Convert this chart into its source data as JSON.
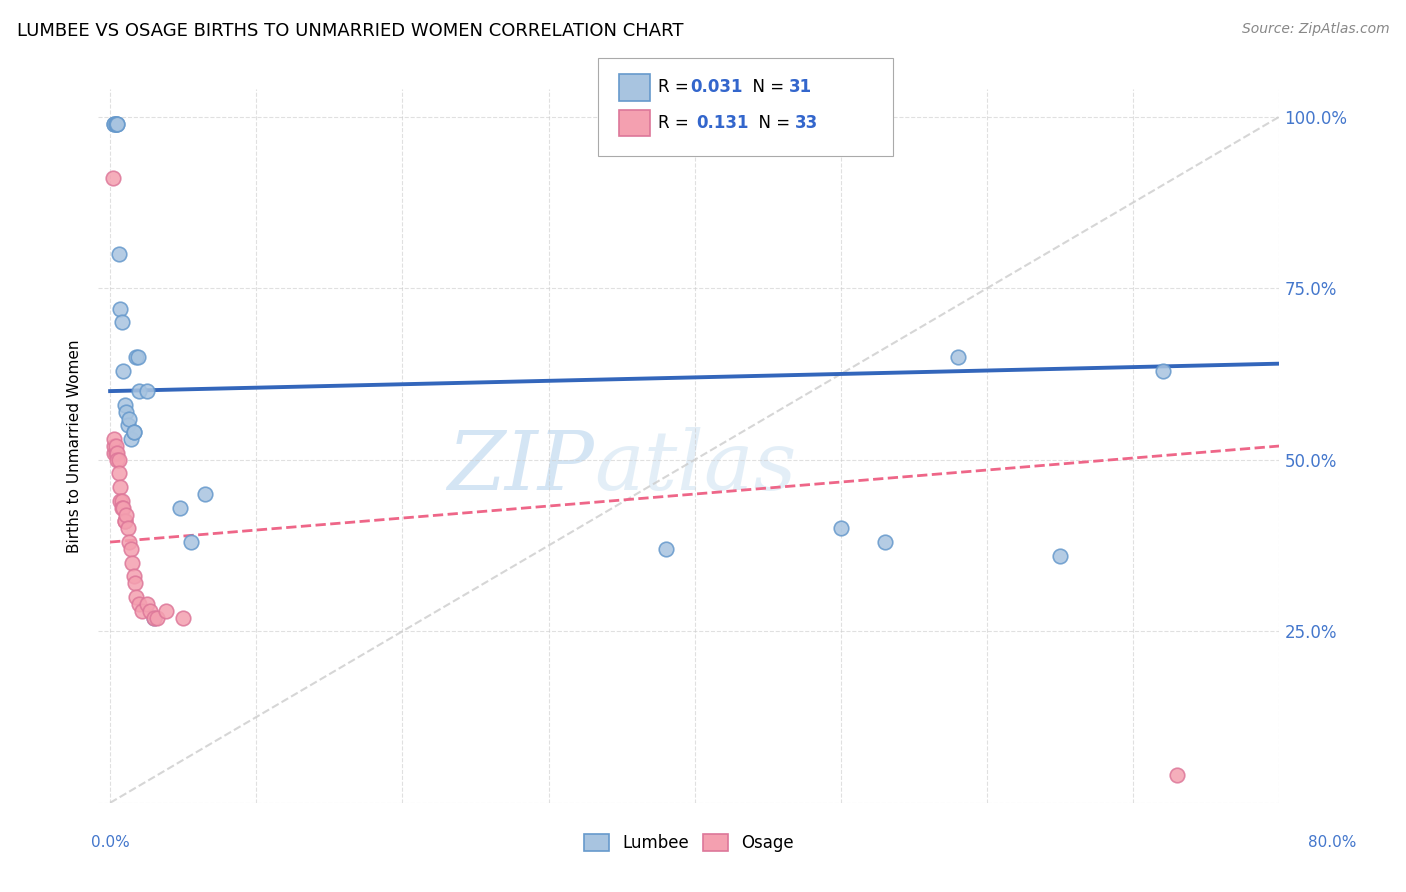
{
  "title": "LUMBEE VS OSAGE BIRTHS TO UNMARRIED WOMEN CORRELATION CHART",
  "source": "Source: ZipAtlas.com",
  "ylabel": "Births to Unmarried Women",
  "watermark": "ZIPatlas",
  "lumbee_color": "#a8c4e0",
  "osage_color": "#f4a0b0",
  "lumbee_edge": "#6699cc",
  "osage_edge": "#dd7799",
  "trend_lumbee_color": "#3366bb",
  "trend_osage_color": "#ee6688",
  "ref_line_color": "#cccccc",
  "xlim": [
    0.0,
    0.8
  ],
  "ylim": [
    0.0,
    1.04
  ],
  "marker_size": 110,
  "lumbee_x": [
    0.003,
    0.003,
    0.004,
    0.004,
    0.005,
    0.005,
    0.006,
    0.007,
    0.008,
    0.009,
    0.01,
    0.011,
    0.012,
    0.013,
    0.014,
    0.016,
    0.016,
    0.018,
    0.019,
    0.02,
    0.025,
    0.03,
    0.048,
    0.055,
    0.065,
    0.38,
    0.5,
    0.53,
    0.58,
    0.65,
    0.72
  ],
  "lumbee_y": [
    0.99,
    0.99,
    0.99,
    0.99,
    0.99,
    0.99,
    0.8,
    0.72,
    0.7,
    0.63,
    0.58,
    0.57,
    0.55,
    0.56,
    0.53,
    0.54,
    0.54,
    0.65,
    0.65,
    0.6,
    0.6,
    0.27,
    0.43,
    0.38,
    0.45,
    0.37,
    0.4,
    0.38,
    0.65,
    0.36,
    0.63
  ],
  "osage_x": [
    0.002,
    0.003,
    0.003,
    0.003,
    0.004,
    0.004,
    0.005,
    0.005,
    0.006,
    0.006,
    0.007,
    0.007,
    0.008,
    0.008,
    0.009,
    0.01,
    0.01,
    0.011,
    0.012,
    0.013,
    0.014,
    0.015,
    0.016,
    0.017,
    0.018,
    0.02,
    0.022,
    0.025,
    0.027,
    0.03,
    0.032,
    0.038,
    0.05,
    0.73
  ],
  "osage_y": [
    0.91,
    0.51,
    0.52,
    0.53,
    0.51,
    0.52,
    0.51,
    0.5,
    0.5,
    0.48,
    0.46,
    0.44,
    0.44,
    0.43,
    0.43,
    0.41,
    0.41,
    0.42,
    0.4,
    0.38,
    0.37,
    0.35,
    0.33,
    0.32,
    0.3,
    0.29,
    0.28,
    0.29,
    0.28,
    0.27,
    0.27,
    0.28,
    0.27,
    0.04
  ],
  "lumbee_trend_x": [
    0.0,
    0.8
  ],
  "lumbee_trend_y": [
    0.6,
    0.64
  ],
  "osage_trend_x": [
    0.0,
    0.8
  ],
  "osage_trend_y": [
    0.38,
    0.52
  ],
  "ref_line_x": [
    0.0,
    0.8
  ],
  "ref_line_y": [
    0.0,
    1.0
  ]
}
